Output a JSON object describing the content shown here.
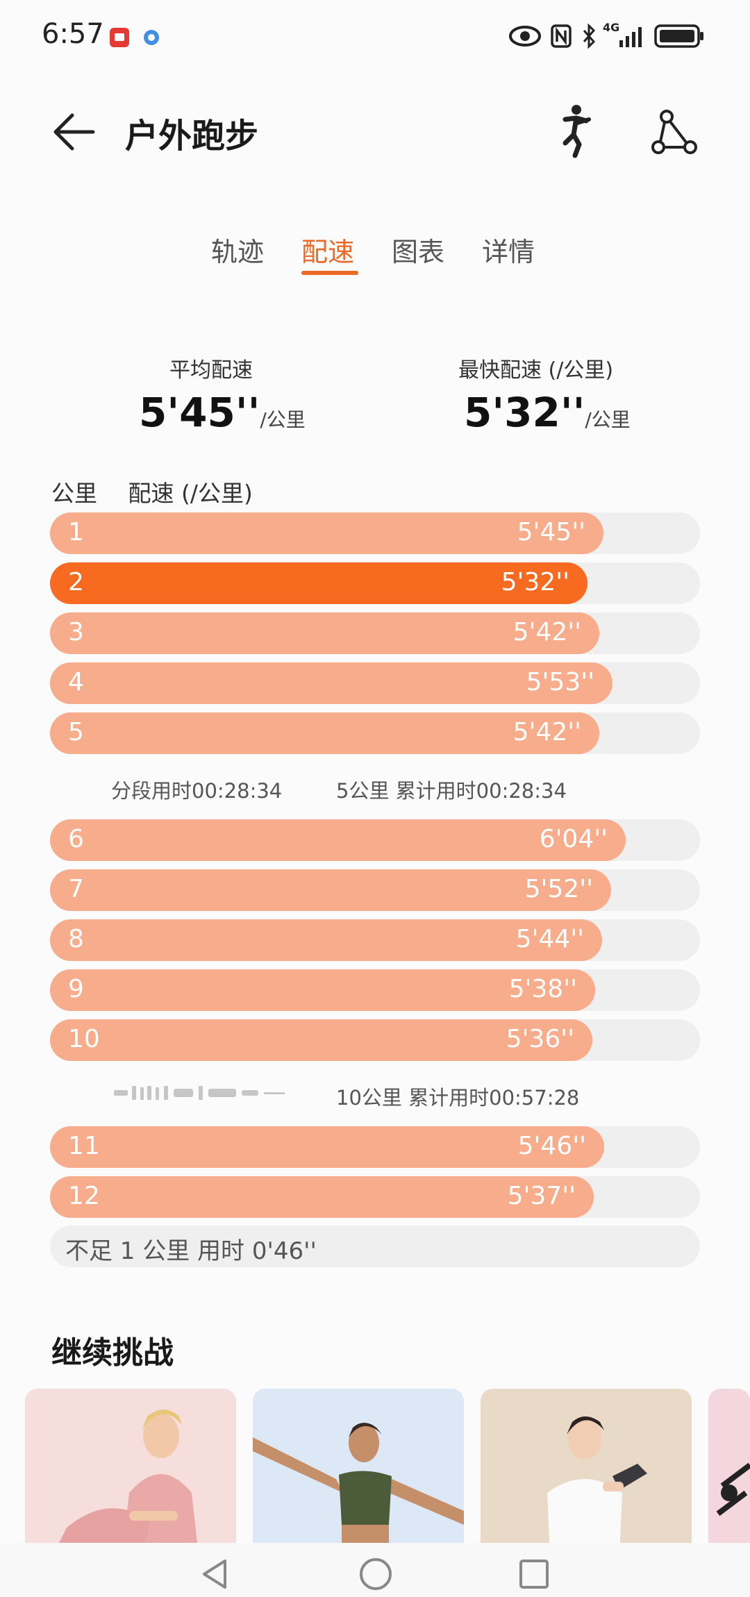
{
  "status_bar": {
    "time": "6:57",
    "network": "4G"
  },
  "header": {
    "title": "户外跑步"
  },
  "tabs": [
    {
      "label": "轨迹",
      "active": false
    },
    {
      "label": "配速",
      "active": true
    },
    {
      "label": "图表",
      "active": false
    },
    {
      "label": "详情",
      "active": false
    }
  ],
  "summary": {
    "avg_label": "平均配速",
    "avg_value": "5'45''",
    "avg_unit": "/公里",
    "best_label": "最快配速 (/公里)",
    "best_value": "5'32''",
    "best_unit": "/公里"
  },
  "table": {
    "col_km": "公里",
    "col_pace": "配速 (/公里)",
    "rows": [
      {
        "km": "1",
        "pace": "5'45''",
        "pace_seconds": 345,
        "fastest": false
      },
      {
        "km": "2",
        "pace": "5'32''",
        "pace_seconds": 332,
        "fastest": true
      },
      {
        "km": "3",
        "pace": "5'42''",
        "pace_seconds": 342,
        "fastest": false
      },
      {
        "km": "4",
        "pace": "5'53''",
        "pace_seconds": 353,
        "fastest": false
      },
      {
        "km": "5",
        "pace": "5'42''",
        "pace_seconds": 342,
        "fastest": false
      },
      {
        "km": "6",
        "pace": "6'04''",
        "pace_seconds": 364,
        "fastest": false
      },
      {
        "km": "7",
        "pace": "5'52''",
        "pace_seconds": 352,
        "fastest": false
      },
      {
        "km": "8",
        "pace": "5'44''",
        "pace_seconds": 344,
        "fastest": false
      },
      {
        "km": "9",
        "pace": "5'38''",
        "pace_seconds": 338,
        "fastest": false
      },
      {
        "km": "10",
        "pace": "5'36''",
        "pace_seconds": 336,
        "fastest": false
      },
      {
        "km": "11",
        "pace": "5'46''",
        "pace_seconds": 346,
        "fastest": false
      },
      {
        "km": "12",
        "pace": "5'37''",
        "pace_seconds": 337,
        "fastest": false
      }
    ],
    "split_5": {
      "segment": "分段用时00:28:34",
      "cumulative": "5公里 累计用时00:28:34"
    },
    "split_10": {
      "cumulative": "10公里 累计用时00:57:28"
    },
    "remainder": "不足 1 公里 用时 0'46''"
  },
  "challenge": {
    "title": "继续挑战"
  },
  "colors": {
    "accent": "#ec6a26",
    "bar": "#f7ac8b",
    "bar_best": "#f76a20",
    "track": "#efefef"
  }
}
